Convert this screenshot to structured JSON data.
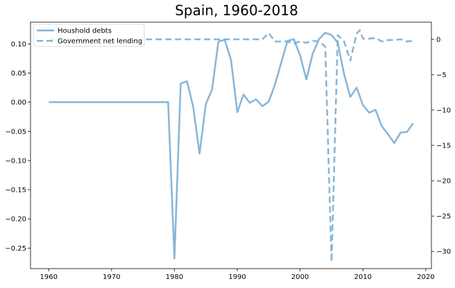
{
  "chart_data": {
    "type": "line",
    "title": "Spain, 1960-2018",
    "xlabel": "",
    "ylabel_left": "",
    "ylabel_right": "",
    "xlim": [
      1957.1,
      2020.9
    ],
    "ylim_left": [
      -0.2852,
      0.1372
    ],
    "ylim_right": [
      -32.43,
      2.43
    ],
    "x_ticks": [
      1960,
      1970,
      1980,
      1990,
      2000,
      2010,
      2020
    ],
    "y_ticks_left": [
      0.1,
      0.05,
      0.0,
      -0.05,
      -0.1,
      -0.15,
      -0.2,
      -0.25
    ],
    "y_ticks_left_labels": [
      "0.10",
      "0.05",
      "0.00",
      "−0.05",
      "−0.10",
      "−0.15",
      "−0.20",
      "−0.25"
    ],
    "y_ticks_right": [
      0,
      -5,
      -10,
      -15,
      -20,
      -25,
      -30
    ],
    "y_ticks_right_labels": [
      "0",
      "−5",
      "−10",
      "−15",
      "−20",
      "−25",
      "−30"
    ],
    "grid": false,
    "legend_position": "top-left",
    "color": "#7bafd4",
    "series": [
      {
        "name": "Houshold debts",
        "axis": "left",
        "style": "solid",
        "points": [
          [
            1960,
            0.0
          ],
          [
            1965,
            0.0
          ],
          [
            1970,
            0.0
          ],
          [
            1975,
            0.0
          ],
          [
            1979,
            0.0
          ],
          [
            1980,
            -0.268
          ],
          [
            1981,
            0.032
          ],
          [
            1982,
            0.036
          ],
          [
            1983,
            -0.008
          ],
          [
            1984,
            -0.088
          ],
          [
            1985,
            -0.003
          ],
          [
            1986,
            0.022
          ],
          [
            1987,
            0.104
          ],
          [
            1988,
            0.107
          ],
          [
            1989,
            0.073
          ],
          [
            1990,
            -0.017
          ],
          [
            1991,
            0.013
          ],
          [
            1992,
            -0.001
          ],
          [
            1993,
            0.005
          ],
          [
            1994,
            -0.007
          ],
          [
            1995,
            0.001
          ],
          [
            1996,
            0.03
          ],
          [
            1997,
            0.068
          ],
          [
            1998,
            0.105
          ],
          [
            1999,
            0.108
          ],
          [
            2000,
            0.08
          ],
          [
            2001,
            0.039
          ],
          [
            2002,
            0.083
          ],
          [
            2003,
            0.108
          ],
          [
            2004,
            0.119
          ],
          [
            2005,
            0.115
          ],
          [
            2006,
            0.102
          ],
          [
            2007,
            0.048
          ],
          [
            2008,
            0.009
          ],
          [
            2009,
            0.025
          ],
          [
            2010,
            -0.005
          ],
          [
            2011,
            -0.018
          ],
          [
            2012,
            -0.013
          ],
          [
            2013,
            -0.041
          ],
          [
            2014,
            -0.055
          ],
          [
            2015,
            -0.07
          ],
          [
            2016,
            -0.052
          ],
          [
            2017,
            -0.051
          ],
          [
            2018,
            -0.036
          ]
        ]
      },
      {
        "name": "Government net lending",
        "axis": "right",
        "style": "dashed",
        "points": [
          [
            1960,
            0.0
          ],
          [
            1970,
            0.0
          ],
          [
            1980,
            0.0
          ],
          [
            1990,
            0.0
          ],
          [
            1994,
            0.0
          ],
          [
            1995,
            0.9
          ],
          [
            1996,
            -0.3
          ],
          [
            1997,
            -0.3
          ],
          [
            1998,
            -0.3
          ],
          [
            1999,
            -0.6
          ],
          [
            2000,
            -0.3
          ],
          [
            2001,
            -0.5
          ],
          [
            2002,
            -0.2
          ],
          [
            2003,
            -0.3
          ],
          [
            2004,
            -1.0
          ],
          [
            2005,
            -31.5
          ],
          [
            2006,
            0.6
          ],
          [
            2007,
            -0.3
          ],
          [
            2008,
            -3.0
          ],
          [
            2009,
            0.8
          ],
          [
            2009.5,
            1.3
          ],
          [
            2010,
            0.1
          ],
          [
            2011,
            0.1
          ],
          [
            2012,
            0.2
          ],
          [
            2013,
            -0.3
          ],
          [
            2014,
            -0.1
          ],
          [
            2015,
            -0.1
          ],
          [
            2016,
            0.0
          ],
          [
            2017,
            -0.3
          ],
          [
            2018,
            -0.2
          ]
        ]
      }
    ]
  }
}
